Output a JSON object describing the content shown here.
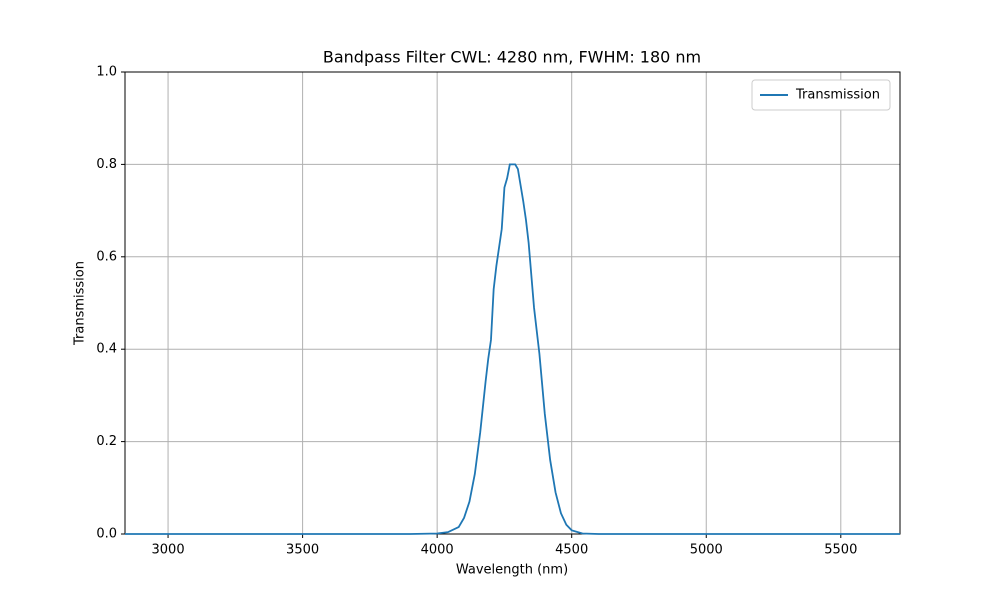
{
  "chart_data": {
    "type": "line",
    "title": "Bandpass Filter CWL: 4280 nm, FWHM: 180 nm",
    "x_label": "Wavelength (nm)",
    "y_label": "Transmission",
    "x": [
      2840,
      3000,
      3500,
      3900,
      4000,
      4040,
      4080,
      4100,
      4120,
      4140,
      4160,
      4180,
      4190,
      4200,
      4210,
      4220,
      4240,
      4250,
      4260,
      4270,
      4290,
      4300,
      4320,
      4330,
      4340,
      4360,
      4380,
      4400,
      4420,
      4440,
      4460,
      4480,
      4500,
      4540,
      4600,
      5000,
      5720
    ],
    "series": [
      {
        "name": "Transmission",
        "color": "#1f77b4",
        "values": [
          0,
          0,
          0,
          0,
          0.001,
          0.004,
          0.015,
          0.035,
          0.07,
          0.13,
          0.22,
          0.33,
          0.38,
          0.42,
          0.53,
          0.58,
          0.66,
          0.75,
          0.77,
          0.8,
          0.8,
          0.79,
          0.72,
          0.68,
          0.63,
          0.49,
          0.39,
          0.26,
          0.16,
          0.09,
          0.045,
          0.02,
          0.008,
          0.001,
          0,
          0,
          0
        ]
      }
    ],
    "xlim": [
      2840,
      5720
    ],
    "ylim": [
      0,
      1
    ],
    "xticks": [
      3000,
      3500,
      4000,
      4500,
      5000,
      5500
    ],
    "yticks": [
      {
        "value": 0,
        "label": "0.0"
      },
      0.2,
      0.4,
      0.6,
      0.8,
      {
        "value": 1,
        "label": "1.0"
      }
    ],
    "grid": true,
    "legend": "upper right"
  }
}
